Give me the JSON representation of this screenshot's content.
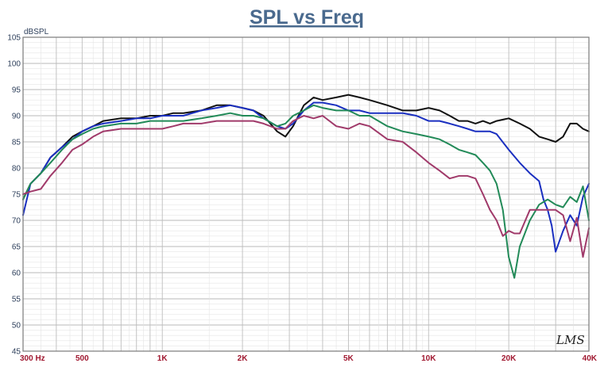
{
  "chart_data": {
    "type": "line",
    "title": "SPL vs Freq",
    "ylabel": "dBSPL",
    "xlabel": "",
    "xscale": "log",
    "xlim": [
      300,
      40000
    ],
    "ylim": [
      45,
      105
    ],
    "grid": true,
    "y_ticks": [
      "45",
      "50",
      "55",
      "60",
      "65",
      "70",
      "75",
      "80",
      "85",
      "90",
      "95",
      "100",
      "105"
    ],
    "x_ticks": [
      {
        "value": 300,
        "label": "300 Hz"
      },
      {
        "value": 500,
        "label": "500"
      },
      {
        "value": 1000,
        "label": "1K"
      },
      {
        "value": 2000,
        "label": "2K"
      },
      {
        "value": 5000,
        "label": "5K"
      },
      {
        "value": 10000,
        "label": "10K"
      },
      {
        "value": 20000,
        "label": "20K"
      },
      {
        "value": 40000,
        "label": "40K"
      }
    ],
    "watermark": "LMS",
    "series": [
      {
        "color": "#111111",
        "x": [
          300,
          320,
          350,
          380,
          420,
          460,
          500,
          550,
          600,
          700,
          800,
          900,
          1000,
          1100,
          1200,
          1400,
          1600,
          1800,
          2000,
          2200,
          2400,
          2700,
          2900,
          3100,
          3400,
          3700,
          4000,
          4500,
          5000,
          5500,
          6000,
          7000,
          8000,
          9000,
          10000,
          11000,
          12000,
          13000,
          14000,
          15000,
          16000,
          17000,
          18000,
          20000,
          22000,
          24000,
          26000,
          28000,
          30000,
          32000,
          34000,
          36000,
          38000,
          40000
        ],
        "y": [
          74,
          77,
          79,
          82,
          84,
          86,
          87,
          88,
          89,
          89.5,
          89.5,
          90,
          90,
          90.5,
          90.5,
          91,
          92,
          92,
          91.5,
          91,
          90,
          87,
          86,
          88,
          92,
          93.5,
          93,
          93.5,
          94,
          93.5,
          93,
          92,
          91,
          91,
          91.5,
          91,
          90,
          89,
          89,
          88.5,
          89,
          88.5,
          89,
          89.5,
          88.5,
          87.5,
          86,
          85.5,
          85,
          86,
          88.5,
          88.5,
          87.5,
          87
        ]
      },
      {
        "color": "#1a2fc0",
        "x": [
          300,
          320,
          350,
          380,
          420,
          460,
          500,
          550,
          600,
          700,
          800,
          900,
          1000,
          1100,
          1200,
          1400,
          1600,
          1800,
          2000,
          2200,
          2400,
          2700,
          2900,
          3100,
          3400,
          3700,
          4000,
          4500,
          5000,
          5500,
          6000,
          7000,
          8000,
          9000,
          10000,
          11000,
          12000,
          13000,
          14000,
          15000,
          16000,
          17000,
          18000,
          20000,
          22000,
          24000,
          26000,
          27000,
          28000,
          29000,
          30000,
          32000,
          34000,
          36000,
          38000,
          40000
        ],
        "y": [
          71,
          77,
          79,
          82,
          84,
          85.5,
          87,
          88,
          88.5,
          89,
          89.5,
          89.5,
          90,
          90,
          90,
          91,
          91.5,
          92,
          91.5,
          91,
          89.5,
          88,
          87.5,
          88.5,
          91,
          92.5,
          92.5,
          92,
          91,
          91,
          90.5,
          90.5,
          90.5,
          90,
          89,
          89,
          88.5,
          88,
          87.5,
          87,
          87,
          87,
          86.5,
          83.5,
          81,
          79,
          77.5,
          74,
          72,
          69,
          64,
          68,
          71,
          69,
          74.5,
          77
        ]
      },
      {
        "color": "#228a58",
        "x": [
          300,
          320,
          350,
          380,
          420,
          460,
          500,
          550,
          600,
          700,
          800,
          900,
          1000,
          1100,
          1200,
          1400,
          1600,
          1800,
          2000,
          2200,
          2400,
          2700,
          2900,
          3100,
          3400,
          3700,
          4000,
          4500,
          5000,
          5500,
          6000,
          7000,
          8000,
          9000,
          10000,
          11000,
          12000,
          13000,
          14000,
          15000,
          16000,
          17000,
          18000,
          19000,
          20000,
          21000,
          22000,
          24000,
          26000,
          28000,
          30000,
          32000,
          34000,
          36000,
          38000,
          40000
        ],
        "y": [
          74,
          77,
          79,
          81,
          83.5,
          85.5,
          86.5,
          87.5,
          88,
          88.5,
          88.5,
          89,
          89,
          89,
          89,
          89.5,
          90,
          90.5,
          90,
          90,
          89.5,
          88,
          88.5,
          90,
          91,
          92,
          91.5,
          91,
          91,
          90,
          90,
          88,
          87,
          86.5,
          86,
          85.5,
          84.5,
          83.5,
          83,
          82.5,
          81,
          79.5,
          77,
          72,
          63,
          59,
          65,
          70,
          73,
          74,
          73,
          72.5,
          74.5,
          73.5,
          76.5,
          70
        ]
      },
      {
        "color": "#a03a6a",
        "x": [
          300,
          320,
          350,
          380,
          420,
          460,
          500,
          550,
          600,
          700,
          800,
          900,
          1000,
          1100,
          1200,
          1400,
          1600,
          1800,
          2000,
          2200,
          2400,
          2700,
          2900,
          3100,
          3400,
          3700,
          4000,
          4500,
          5000,
          5500,
          6000,
          7000,
          8000,
          9000,
          10000,
          11000,
          12000,
          13000,
          14000,
          15000,
          16000,
          17000,
          18000,
          19000,
          20000,
          21000,
          22000,
          24000,
          26000,
          28000,
          30000,
          32000,
          34000,
          36000,
          38000,
          40000
        ],
        "y": [
          75,
          75.5,
          76,
          78.5,
          81,
          83.5,
          84.5,
          86,
          87,
          87.5,
          87.5,
          87.5,
          87.5,
          88,
          88.5,
          88.5,
          89,
          89,
          89,
          89,
          88.5,
          87.5,
          87.5,
          89,
          90,
          89.5,
          90,
          88,
          87.5,
          88.5,
          88,
          85.5,
          85,
          83,
          81,
          79.5,
          78,
          78.5,
          78.5,
          78,
          75,
          72,
          70,
          67,
          68,
          67.5,
          67.5,
          72,
          72,
          72,
          72,
          71,
          66,
          70.5,
          63,
          68.5
        ]
      }
    ]
  }
}
